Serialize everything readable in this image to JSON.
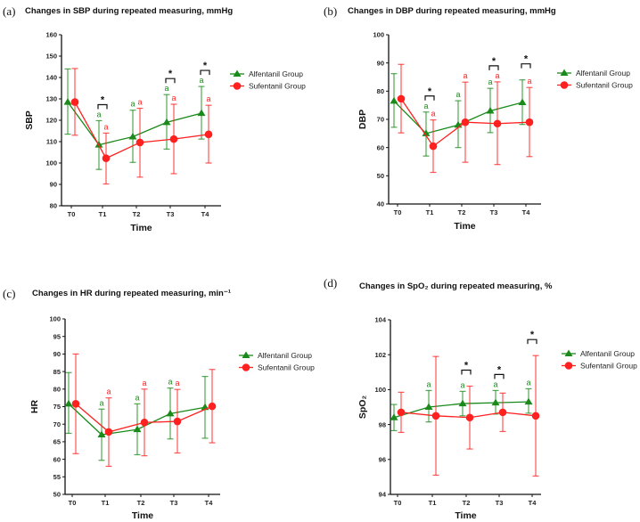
{
  "colors": {
    "alfentanil": "#1a8a1a",
    "sufentanil": "#ff2020",
    "axis": "#111111"
  },
  "chart_data": [
    {
      "panel_label": "(a)",
      "type": "line",
      "title": "Changes in SBP during repeated measuring, mmHg",
      "xlabel": "Time",
      "ylabel": "SBP",
      "categories": [
        "T0",
        "T1",
        "T2",
        "T3",
        "T4"
      ],
      "ylim": [
        80,
        160
      ],
      "yticks": [
        80,
        90,
        100,
        110,
        120,
        130,
        140,
        150,
        160
      ],
      "legend": "right",
      "series": [
        {
          "name": "Alfentanil Group",
          "marker": "triangle",
          "values": [
            128.5,
            108.5,
            112.3,
            119,
            123.3
          ],
          "err_low": [
            113.5,
            97,
            100.3,
            106.5,
            111.2
          ],
          "err_high": [
            144,
            119.8,
            124.7,
            132,
            135.8
          ],
          "annotations": [
            "",
            "a",
            "a",
            "a",
            "a"
          ]
        },
        {
          "name": "Sufentanil Group",
          "marker": "circle",
          "values": [
            128.5,
            102.2,
            109.6,
            111.2,
            113.4
          ],
          "err_low": [
            113,
            90.2,
            93.4,
            95,
            100
          ],
          "err_high": [
            144.2,
            114,
            125.6,
            127.5,
            127
          ],
          "annotations": [
            "",
            "a",
            "a",
            "a",
            "a"
          ]
        }
      ],
      "significance": [
        "",
        "*",
        "",
        "*",
        "*"
      ]
    },
    {
      "panel_label": "(b)",
      "type": "line",
      "title": "Changes in DBP during repeated measuring, mmHg",
      "xlabel": "Time",
      "ylabel": "DBP",
      "categories": [
        "T0",
        "T1",
        "T2",
        "T3",
        "T4"
      ],
      "ylim": [
        40,
        100
      ],
      "yticks": [
        40,
        50,
        60,
        70,
        80,
        90,
        100
      ],
      "legend": "right",
      "series": [
        {
          "name": "Alfentanil Group",
          "marker": "triangle",
          "values": [
            76.5,
            65,
            68,
            73,
            76
          ],
          "err_low": [
            67.2,
            57,
            60,
            65.3,
            68.2
          ],
          "err_high": [
            86.2,
            72.6,
            76.6,
            81,
            84
          ],
          "annotations": [
            "",
            "a",
            "a",
            "a",
            ""
          ]
        },
        {
          "name": "Sufentanil Group",
          "marker": "circle",
          "values": [
            77.3,
            60.5,
            69,
            68.5,
            69
          ],
          "err_low": [
            65.2,
            51.2,
            54.8,
            54,
            56.8
          ],
          "err_high": [
            89.5,
            69.8,
            83.2,
            83.3,
            81.3
          ],
          "annotations": [
            "",
            "a",
            "a",
            "a",
            "a"
          ]
        }
      ],
      "significance": [
        "",
        "*",
        "",
        "*",
        "*"
      ]
    },
    {
      "panel_label": "(c)",
      "type": "line",
      "title": "Changes in HR during repeated measuring, min⁻¹",
      "xlabel": "Time",
      "ylabel": "HR",
      "categories": [
        "T0",
        "T1",
        "T2",
        "T3",
        "T4"
      ],
      "ylim": [
        50,
        100
      ],
      "yticks": [
        50,
        55,
        60,
        65,
        70,
        75,
        80,
        85,
        90,
        95,
        100
      ],
      "legend": "right",
      "series": [
        {
          "name": "Alfentanil Group",
          "marker": "triangle",
          "values": [
            75.8,
            67,
            68.5,
            73,
            74.8
          ],
          "err_low": [
            67.4,
            59.7,
            61.3,
            65.8,
            66
          ],
          "err_high": [
            84.7,
            74.3,
            75.8,
            80.3,
            83.6
          ],
          "annotations": [
            "",
            "a",
            "a",
            "a",
            ""
          ]
        },
        {
          "name": "Sufentanil Group",
          "marker": "circle",
          "values": [
            75.8,
            67.8,
            70.5,
            70.8,
            75.1
          ],
          "err_low": [
            61.6,
            58,
            61,
            61.8,
            64.7
          ],
          "err_high": [
            90,
            77.5,
            80,
            79.9,
            85.6
          ],
          "annotations": [
            "",
            "a",
            "a",
            "a",
            ""
          ]
        }
      ],
      "significance": [
        "",
        "",
        "",
        "",
        ""
      ]
    },
    {
      "panel_label": "(d)",
      "type": "line",
      "title": "Changes in SpO₂ during repeated measuring, %",
      "xlabel": "Time",
      "ylabel": "SpO₂",
      "categories": [
        "T0",
        "T1",
        "T2",
        "T3",
        "T4"
      ],
      "ylim": [
        94,
        104
      ],
      "yticks": [
        94,
        96,
        98,
        100,
        102,
        104
      ],
      "legend": "right",
      "series": [
        {
          "name": "Alfentanil Group",
          "marker": "triangle",
          "values": [
            98.4,
            99,
            99.2,
            99.25,
            99.3
          ],
          "err_low": [
            97.65,
            98.15,
            98.5,
            98.6,
            98.65
          ],
          "err_high": [
            99.15,
            99.95,
            99.9,
            99.95,
            100.05
          ],
          "annotations": [
            "",
            "a",
            "a",
            "a",
            "a"
          ]
        },
        {
          "name": "Sufentanil Group",
          "marker": "circle",
          "values": [
            98.7,
            98.5,
            98.4,
            98.7,
            98.5
          ],
          "err_low": [
            97.55,
            95.1,
            96.6,
            97.6,
            95.05
          ],
          "err_high": [
            99.85,
            101.9,
            100.2,
            99.8,
            101.95
          ],
          "annotations": [
            "",
            "",
            "",
            "",
            ""
          ]
        }
      ],
      "significance": [
        "",
        "",
        "*",
        "*",
        "*"
      ]
    }
  ]
}
